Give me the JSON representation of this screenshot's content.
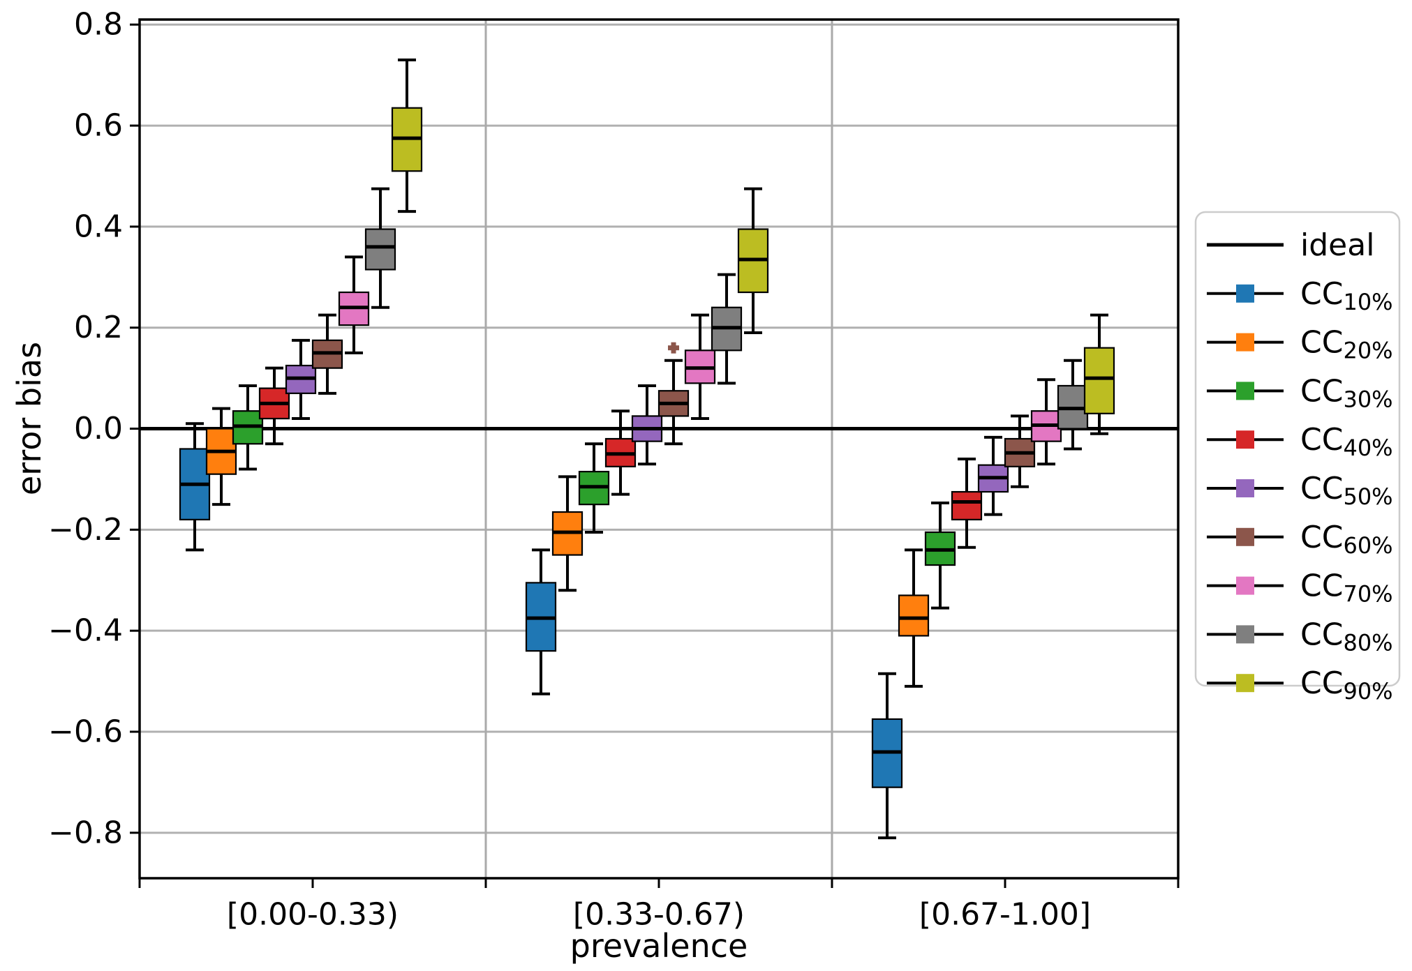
{
  "figure": {
    "background": "#ffffff"
  },
  "chart_data": {
    "type": "boxplot",
    "title": "",
    "xlabel": "prevalence",
    "ylabel": "error bias",
    "grid": true,
    "legend_position": "right",
    "ylim": [
      -0.89,
      0.81
    ],
    "yticks": [
      {
        "value": 0.8,
        "label": "0.8"
      },
      {
        "value": 0.6,
        "label": "0.6"
      },
      {
        "value": 0.4,
        "label": "0.4"
      },
      {
        "value": 0.2,
        "label": "0.2"
      },
      {
        "value": 0.0,
        "label": "0.0"
      },
      {
        "value": -0.2,
        "label": "−0.2"
      },
      {
        "value": -0.4,
        "label": "−0.4"
      },
      {
        "value": -0.6,
        "label": "−0.6"
      },
      {
        "value": -0.8,
        "label": "−0.8"
      }
    ],
    "categories": [
      "[0.00-0.33)",
      "[0.33-0.67)",
      "[0.67-1.00]"
    ],
    "ideal_line": {
      "label": "ideal",
      "y": 0,
      "color": "#000000"
    },
    "series": [
      {
        "base": "CC",
        "sub": "10%",
        "color": "#1f77b4"
      },
      {
        "base": "CC",
        "sub": "20%",
        "color": "#ff7f0e"
      },
      {
        "base": "CC",
        "sub": "30%",
        "color": "#2ca02c"
      },
      {
        "base": "CC",
        "sub": "40%",
        "color": "#d62728"
      },
      {
        "base": "CC",
        "sub": "50%",
        "color": "#9467bd"
      },
      {
        "base": "CC",
        "sub": "60%",
        "color": "#8c564b"
      },
      {
        "base": "CC",
        "sub": "70%",
        "color": "#e377c2"
      },
      {
        "base": "CC",
        "sub": "80%",
        "color": "#7f7f7f"
      },
      {
        "base": "CC",
        "sub": "90%",
        "color": "#bcbd22"
      }
    ],
    "groups": [
      {
        "category": "[0.00-0.33)",
        "boxes": [
          {
            "series": "CC10%",
            "whislo": -0.24,
            "q1": -0.18,
            "med": -0.11,
            "q3": -0.04,
            "whishi": 0.01,
            "fliers": []
          },
          {
            "series": "CC20%",
            "whislo": -0.15,
            "q1": -0.09,
            "med": -0.045,
            "q3": 0.0,
            "whishi": 0.04,
            "fliers": []
          },
          {
            "series": "CC30%",
            "whislo": -0.08,
            "q1": -0.03,
            "med": 0.005,
            "q3": 0.035,
            "whishi": 0.085,
            "fliers": []
          },
          {
            "series": "CC40%",
            "whislo": -0.03,
            "q1": 0.02,
            "med": 0.05,
            "q3": 0.08,
            "whishi": 0.12,
            "fliers": []
          },
          {
            "series": "CC50%",
            "whislo": 0.02,
            "q1": 0.07,
            "med": 0.1,
            "q3": 0.125,
            "whishi": 0.175,
            "fliers": []
          },
          {
            "series": "CC60%",
            "whislo": 0.07,
            "q1": 0.12,
            "med": 0.15,
            "q3": 0.175,
            "whishi": 0.225,
            "fliers": []
          },
          {
            "series": "CC70%",
            "whislo": 0.15,
            "q1": 0.205,
            "med": 0.24,
            "q3": 0.27,
            "whishi": 0.34,
            "fliers": []
          },
          {
            "series": "CC80%",
            "whislo": 0.24,
            "q1": 0.315,
            "med": 0.36,
            "q3": 0.395,
            "whishi": 0.475,
            "fliers": []
          },
          {
            "series": "CC90%",
            "whislo": 0.43,
            "q1": 0.51,
            "med": 0.575,
            "q3": 0.635,
            "whishi": 0.73,
            "fliers": []
          }
        ]
      },
      {
        "category": "[0.33-0.67)",
        "boxes": [
          {
            "series": "CC10%",
            "whislo": -0.525,
            "q1": -0.44,
            "med": -0.375,
            "q3": -0.305,
            "whishi": -0.24,
            "fliers": []
          },
          {
            "series": "CC20%",
            "whislo": -0.32,
            "q1": -0.25,
            "med": -0.205,
            "q3": -0.165,
            "whishi": -0.095,
            "fliers": []
          },
          {
            "series": "CC30%",
            "whislo": -0.205,
            "q1": -0.15,
            "med": -0.115,
            "q3": -0.085,
            "whishi": -0.03,
            "fliers": []
          },
          {
            "series": "CC40%",
            "whislo": -0.13,
            "q1": -0.075,
            "med": -0.05,
            "q3": -0.02,
            "whishi": 0.035,
            "fliers": []
          },
          {
            "series": "CC50%",
            "whislo": -0.07,
            "q1": -0.025,
            "med": 0.0,
            "q3": 0.025,
            "whishi": 0.085,
            "fliers": []
          },
          {
            "series": "CC60%",
            "whislo": -0.03,
            "q1": 0.025,
            "med": 0.05,
            "q3": 0.075,
            "whishi": 0.135,
            "fliers": [
              0.16
            ]
          },
          {
            "series": "CC70%",
            "whislo": 0.02,
            "q1": 0.09,
            "med": 0.12,
            "q3": 0.155,
            "whishi": 0.225,
            "fliers": []
          },
          {
            "series": "CC80%",
            "whislo": 0.09,
            "q1": 0.155,
            "med": 0.2,
            "q3": 0.24,
            "whishi": 0.305,
            "fliers": []
          },
          {
            "series": "CC90%",
            "whislo": 0.19,
            "q1": 0.27,
            "med": 0.335,
            "q3": 0.395,
            "whishi": 0.475,
            "fliers": []
          }
        ]
      },
      {
        "category": "[0.67-1.00]",
        "boxes": [
          {
            "series": "CC10%",
            "whislo": -0.81,
            "q1": -0.71,
            "med": -0.64,
            "q3": -0.575,
            "whishi": -0.485,
            "fliers": []
          },
          {
            "series": "CC20%",
            "whislo": -0.51,
            "q1": -0.41,
            "med": -0.375,
            "q3": -0.33,
            "whishi": -0.24,
            "fliers": []
          },
          {
            "series": "CC30%",
            "whislo": -0.355,
            "q1": -0.27,
            "med": -0.24,
            "q3": -0.205,
            "whishi": -0.147,
            "fliers": []
          },
          {
            "series": "CC40%",
            "whislo": -0.235,
            "q1": -0.18,
            "med": -0.145,
            "q3": -0.125,
            "whishi": -0.06,
            "fliers": []
          },
          {
            "series": "CC50%",
            "whislo": -0.17,
            "q1": -0.125,
            "med": -0.097,
            "q3": -0.072,
            "whishi": -0.017,
            "fliers": []
          },
          {
            "series": "CC60%",
            "whislo": -0.115,
            "q1": -0.075,
            "med": -0.048,
            "q3": -0.02,
            "whishi": 0.025,
            "fliers": []
          },
          {
            "series": "CC70%",
            "whislo": -0.07,
            "q1": -0.025,
            "med": 0.007,
            "q3": 0.035,
            "whishi": 0.097,
            "fliers": []
          },
          {
            "series": "CC80%",
            "whislo": -0.04,
            "q1": 0.0,
            "med": 0.04,
            "q3": 0.085,
            "whishi": 0.135,
            "fliers": []
          },
          {
            "series": "CC90%",
            "whislo": -0.01,
            "q1": 0.03,
            "med": 0.1,
            "q3": 0.16,
            "whishi": 0.225,
            "fliers": []
          }
        ]
      }
    ],
    "legend": {
      "entries": [
        {
          "label": "ideal",
          "sub": "",
          "type": "line",
          "color": "#000000"
        },
        {
          "label": "CC",
          "sub": "10%",
          "type": "marker",
          "color": "#1f77b4"
        },
        {
          "label": "CC",
          "sub": "20%",
          "type": "marker",
          "color": "#ff7f0e"
        },
        {
          "label": "CC",
          "sub": "30%",
          "type": "marker",
          "color": "#2ca02c"
        },
        {
          "label": "CC",
          "sub": "40%",
          "type": "marker",
          "color": "#d62728"
        },
        {
          "label": "CC",
          "sub": "50%",
          "type": "marker",
          "color": "#9467bd"
        },
        {
          "label": "CC",
          "sub": "60%",
          "type": "marker",
          "color": "#8c564b"
        },
        {
          "label": "CC",
          "sub": "70%",
          "type": "marker",
          "color": "#e377c2"
        },
        {
          "label": "CC",
          "sub": "80%",
          "type": "marker",
          "color": "#7f7f7f"
        },
        {
          "label": "CC",
          "sub": "90%",
          "type": "marker",
          "color": "#bcbd22"
        }
      ]
    },
    "style": {
      "grid_color": "#b0b0b0",
      "separator_color": "#aaaaaa",
      "spine_color": "#000000",
      "median_color": "#000000",
      "box_edge_color": "#000000",
      "legend_border_color": "#cccccc"
    }
  }
}
